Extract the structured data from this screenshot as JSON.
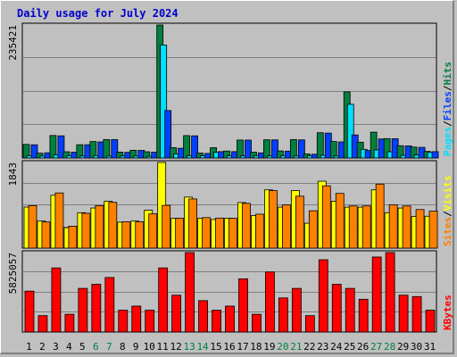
{
  "title": "Daily usage for July 2024",
  "panels": {
    "hits": {
      "max_label": "235421",
      "legend": [
        "Pages",
        "/",
        "Files",
        "/",
        "Hits"
      ]
    },
    "visits": {
      "max_label": "1843",
      "legend": [
        "Sites",
        "/",
        "Visits"
      ]
    },
    "kbytes": {
      "max_label": "5825057",
      "legend": [
        "KBytes"
      ]
    }
  },
  "colors": {
    "hits": "#008040",
    "files": "#00e0ff",
    "pages": "#0040ff",
    "visits": "#ffff00",
    "sites": "#ff8000",
    "kbytes": "#ff0000",
    "weekend_label": "#008040",
    "weekday_label": "#000000",
    "legend_sep": "#000000"
  },
  "chart_data": [
    {
      "type": "bar",
      "title": "",
      "x": [
        "1",
        "2",
        "3",
        "4",
        "5",
        "6",
        "7",
        "8",
        "9",
        "10",
        "11",
        "12",
        "13",
        "14",
        "15",
        "16",
        "17",
        "18",
        "19",
        "20",
        "21",
        "22",
        "23",
        "24",
        "25",
        "26",
        "27",
        "28",
        "29",
        "30",
        "31"
      ],
      "ylim": [
        0,
        235421
      ],
      "series": [
        {
          "name": "Hits",
          "values": [
            24000,
            8500,
            39800,
            11000,
            23500,
            29100,
            32600,
            10400,
            13600,
            11000,
            235421,
            18200,
            39600,
            8700,
            18200,
            12300,
            31700,
            10200,
            32200,
            12500,
            32600,
            7200,
            44700,
            29100,
            117000,
            27900,
            45700,
            34300,
            21700,
            19300,
            11700
          ]
        },
        {
          "name": "Files",
          "values": [
            4000,
            3500,
            5400,
            4000,
            3500,
            4300,
            3300,
            3500,
            3500,
            3000,
            200000,
            7200,
            4000,
            4000,
            10000,
            4000,
            3500,
            4000,
            3500,
            4000,
            3500,
            4000,
            4800,
            3500,
            95000,
            15300,
            14300,
            11000,
            4600,
            5400,
            10000
          ]
        },
        {
          "name": "Pages",
          "values": [
            23400,
            9200,
            39200,
            10200,
            23400,
            28400,
            32600,
            10000,
            13400,
            10200,
            84000,
            17200,
            39200,
            8000,
            11200,
            11200,
            31600,
            9000,
            32000,
            12100,
            32000,
            6600,
            44000,
            28400,
            40800,
            13200,
            33600,
            34000,
            21300,
            18800,
            11200
          ]
        }
      ]
    },
    {
      "type": "bar",
      "title": "",
      "x": [
        "1",
        "2",
        "3",
        "4",
        "5",
        "6",
        "7",
        "8",
        "9",
        "10",
        "11",
        "12",
        "13",
        "14",
        "15",
        "16",
        "17",
        "18",
        "19",
        "20",
        "21",
        "22",
        "23",
        "24",
        "25",
        "26",
        "27",
        "28",
        "29",
        "30",
        "31"
      ],
      "ylim": [
        0,
        1843
      ],
      "series": [
        {
          "name": "Visits",
          "values": [
            883,
            581,
            1137,
            439,
            762,
            863,
            1007,
            558,
            581,
            815,
            1843,
            641,
            1097,
            641,
            616,
            641,
            980,
            700,
            1253,
            881,
            1239,
            536,
            1439,
            1007,
            881,
            881,
            1253,
            762,
            862,
            679,
            686
          ]
        },
        {
          "name": "Sites",
          "values": [
            913,
            563,
            1187,
            472,
            749,
            913,
            984,
            566,
            566,
            736,
            919,
            641,
            1057,
            656,
            646,
            641,
            962,
            730,
            1237,
            929,
            1117,
            803,
            1339,
            1177,
            907,
            907,
            1377,
            931,
            906,
            829,
            796
          ]
        }
      ]
    },
    {
      "type": "bar",
      "title": "",
      "x": [
        "1",
        "2",
        "3",
        "4",
        "5",
        "6",
        "7",
        "8",
        "9",
        "10",
        "11",
        "12",
        "13",
        "14",
        "15",
        "16",
        "17",
        "18",
        "19",
        "20",
        "21",
        "22",
        "23",
        "24",
        "25",
        "26",
        "27",
        "28",
        "29",
        "30",
        "31"
      ],
      "ylim": [
        0,
        5825057
      ],
      "series": [
        {
          "name": "KBytes",
          "values": [
            3000000,
            1200000,
            4700000,
            1300000,
            3200000,
            3500000,
            4000000,
            1600000,
            1900000,
            1600000,
            4700000,
            2700000,
            5825057,
            2300000,
            1600000,
            1900000,
            3900000,
            1300000,
            4400000,
            2500000,
            3200000,
            1200000,
            5300000,
            3500000,
            3200000,
            2400000,
            5500000,
            5825057,
            2700000,
            2600000,
            1600000
          ]
        }
      ]
    }
  ]
}
